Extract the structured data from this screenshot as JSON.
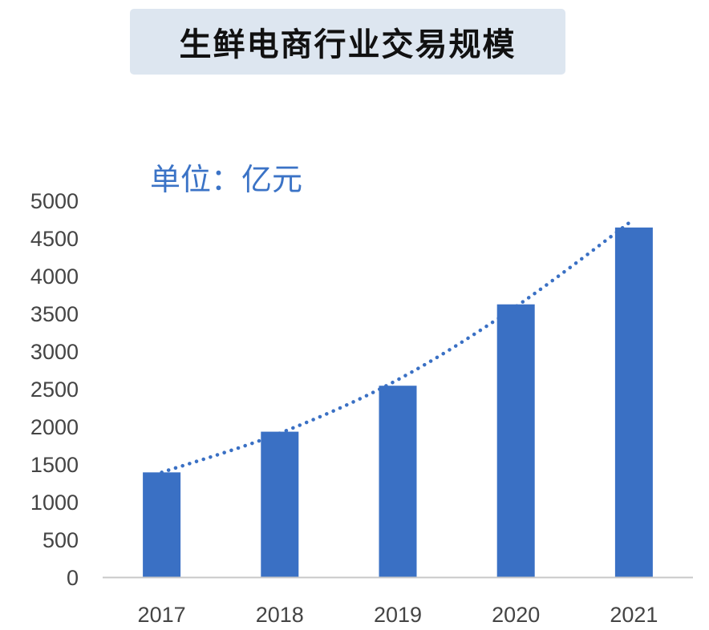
{
  "title": "生鲜电商行业交易规模",
  "unit_label": "单位：亿元",
  "colors": {
    "bar": "#3a70c4",
    "trend": "#3a70c4",
    "axis": "#c8c8c8",
    "title_bg": "#dde6f0",
    "unit_text": "#3b73c6"
  },
  "chart_data": {
    "type": "bar",
    "title": "生鲜电商行业交易规模",
    "xlabel": "",
    "ylabel": "",
    "categories": [
      "2017",
      "2018",
      "2019",
      "2020",
      "2021"
    ],
    "values": [
      1390,
      1930,
      2540,
      3620,
      4640
    ],
    "ylim": [
      0,
      5000
    ],
    "yticks": [
      0,
      500,
      1000,
      1500,
      2000,
      2500,
      3000,
      3500,
      4000,
      4500,
      5000
    ],
    "trendline": {
      "style": "dotted",
      "type": "polynomial",
      "values": [
        1390,
        1910,
        2620,
        3590,
        4750
      ]
    },
    "grid": false,
    "legend": "none"
  }
}
